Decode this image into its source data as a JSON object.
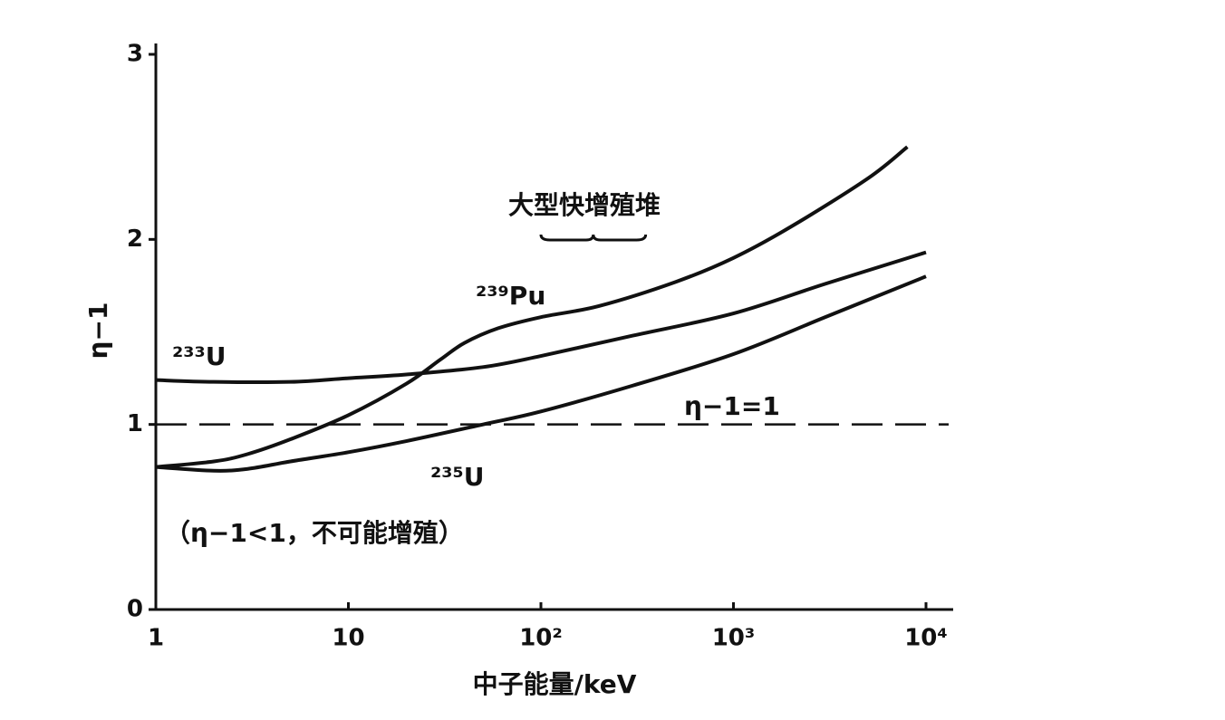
{
  "chart_data": {
    "type": "line",
    "x_label": "中子能量/keV",
    "y_label": "η−1",
    "xscale": "log",
    "xlim": [
      1,
      10000
    ],
    "xticks": [
      1,
      10,
      {
        "value": 100,
        "label": "10²"
      },
      {
        "value": 1000,
        "label": "10³"
      },
      {
        "value": 10000,
        "label": "10⁴"
      }
    ],
    "ylim": [
      0,
      3
    ],
    "yticks": [
      0,
      1,
      2,
      3
    ],
    "grid": false,
    "reference_line": {
      "value": 1,
      "label": "η−1=1"
    },
    "range_annotation": {
      "xrange": [
        100,
        350
      ],
      "label": "大型快增殖堆"
    },
    "note": "（η−1<1，不可能增殖）",
    "series": [
      {
        "name": "²³³U",
        "color": "#111111",
        "x": [
          1,
          2,
          5,
          10,
          20,
          50,
          100,
          300,
          1000,
          3000,
          10000
        ],
        "values": [
          1.24,
          1.23,
          1.23,
          1.25,
          1.27,
          1.31,
          1.37,
          1.48,
          1.6,
          1.76,
          1.93
        ]
      },
      {
        "name": "²³⁹Pu",
        "color": "#111111",
        "x": [
          1,
          2,
          3,
          5,
          10,
          20,
          30,
          40,
          60,
          100,
          200,
          500,
          1000,
          2000,
          5000,
          8000
        ],
        "values": [
          0.77,
          0.8,
          0.84,
          0.92,
          1.05,
          1.22,
          1.35,
          1.44,
          1.52,
          1.58,
          1.64,
          1.77,
          1.9,
          2.07,
          2.33,
          2.5
        ]
      },
      {
        "name": "²³⁵U",
        "color": "#111111",
        "x": [
          1,
          2,
          3,
          5,
          10,
          20,
          50,
          100,
          300,
          1000,
          3000,
          10000
        ],
        "values": [
          0.77,
          0.75,
          0.76,
          0.8,
          0.85,
          0.91,
          1.0,
          1.07,
          1.21,
          1.38,
          1.58,
          1.8
        ]
      }
    ]
  }
}
